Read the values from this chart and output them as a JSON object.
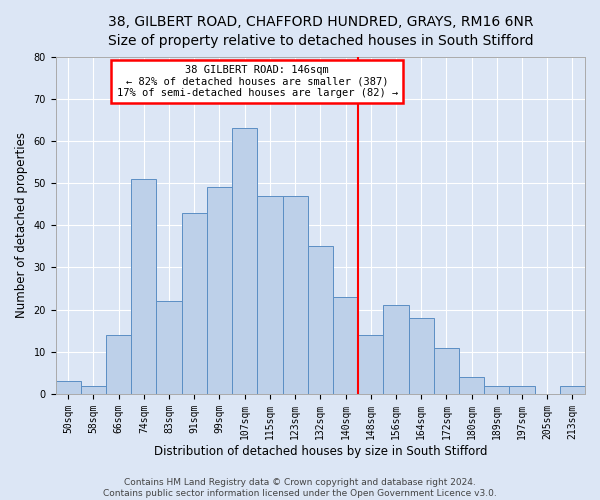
{
  "title_line1": "38, GILBERT ROAD, CHAFFORD HUNDRED, GRAYS, RM16 6NR",
  "title_line2": "Size of property relative to detached houses in South Stifford",
  "xlabel": "Distribution of detached houses by size in South Stifford",
  "ylabel": "Number of detached properties",
  "footer_line1": "Contains HM Land Registry data © Crown copyright and database right 2024.",
  "footer_line2": "Contains public sector information licensed under the Open Government Licence v3.0.",
  "bin_labels": [
    "50sqm",
    "58sqm",
    "66sqm",
    "74sqm",
    "83sqm",
    "91sqm",
    "99sqm",
    "107sqm",
    "115sqm",
    "123sqm",
    "132sqm",
    "140sqm",
    "148sqm",
    "156sqm",
    "164sqm",
    "172sqm",
    "180sqm",
    "189sqm",
    "197sqm",
    "205sqm",
    "213sqm"
  ],
  "bar_heights": [
    3,
    2,
    14,
    51,
    22,
    43,
    49,
    63,
    47,
    47,
    35,
    23,
    14,
    21,
    18,
    11,
    4,
    2,
    2,
    0,
    2
  ],
  "bar_color": "#bdd0e9",
  "bar_edge_color": "#5b8ec4",
  "red_line_x": 11.5,
  "annotation_title": "38 GILBERT ROAD: 146sqm",
  "annotation_line1": "← 82% of detached houses are smaller (387)",
  "annotation_line2": "17% of semi-detached houses are larger (82) →",
  "ylim": [
    0,
    80
  ],
  "yticks": [
    0,
    10,
    20,
    30,
    40,
    50,
    60,
    70,
    80
  ],
  "background_color": "#dce6f5",
  "plot_bg_color": "#dce6f5",
  "grid_color": "#ffffff",
  "title_fontsize": 10,
  "axis_label_fontsize": 8.5,
  "tick_fontsize": 7,
  "footer_fontsize": 6.5,
  "annotation_fontsize": 7.5
}
